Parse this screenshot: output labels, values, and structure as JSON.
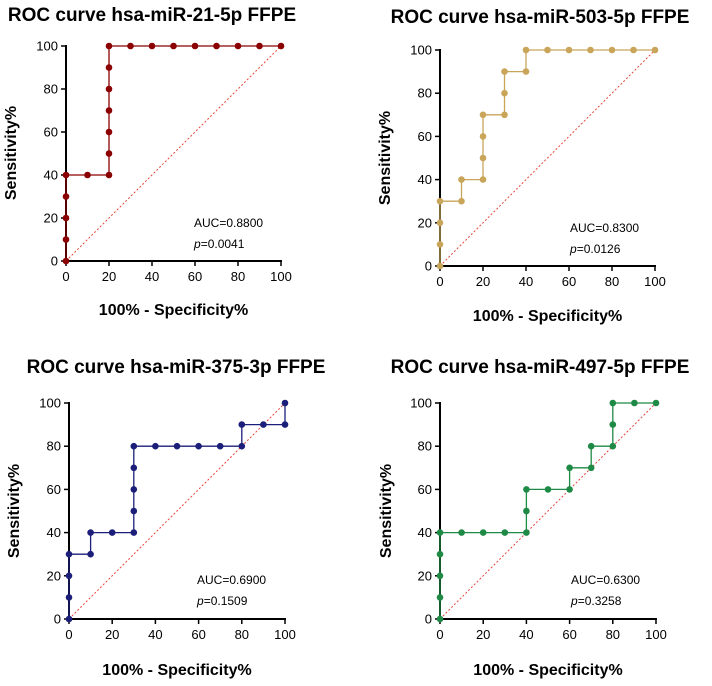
{
  "chart_data": [
    {
      "type": "line",
      "title": "ROC curve hsa-miR-21-5p FFPE",
      "xlabel": "100% - Specificity%",
      "ylabel": "Sensitivity%",
      "xlim": [
        0,
        100
      ],
      "ylim": [
        0,
        100
      ],
      "ticks": [
        "0",
        "20",
        "40",
        "60",
        "80",
        "100"
      ],
      "color": "#8b0000",
      "x": [
        0,
        0,
        0,
        0,
        0,
        10,
        20,
        20,
        20,
        20,
        20,
        20,
        20,
        30,
        40,
        50,
        60,
        70,
        80,
        90,
        100
      ],
      "y": [
        0,
        10,
        20,
        30,
        40,
        40,
        40,
        50,
        60,
        70,
        80,
        90,
        100,
        100,
        100,
        100,
        100,
        100,
        100,
        100,
        100
      ],
      "auc_label": "AUC=0.8800",
      "p_prefix": "p",
      "p_value": "=0.0041"
    },
    {
      "type": "line",
      "title": "ROC curve hsa-miR-503-5p FFPE",
      "xlabel": "100% - Specificity%",
      "ylabel": "Sensitivity%",
      "xlim": [
        0,
        100
      ],
      "ylim": [
        0,
        100
      ],
      "ticks": [
        "0",
        "20",
        "40",
        "60",
        "80",
        "100"
      ],
      "color": "#c9a55a",
      "x": [
        0,
        0,
        0,
        0,
        10,
        10,
        20,
        20,
        20,
        20,
        30,
        30,
        30,
        40,
        40,
        50,
        60,
        70,
        80,
        90,
        100
      ],
      "y": [
        0,
        10,
        20,
        30,
        30,
        40,
        40,
        50,
        60,
        70,
        70,
        80,
        90,
        90,
        100,
        100,
        100,
        100,
        100,
        100,
        100
      ],
      "auc_label": "AUC=0.8300",
      "p_prefix": "p",
      "p_value": "=0.0126"
    },
    {
      "type": "line",
      "title": "ROC curve hsa-miR-375-3p FFPE",
      "xlabel": "100% - Specificity%",
      "ylabel": "Sensitivity%",
      "xlim": [
        0,
        100
      ],
      "ylim": [
        0,
        100
      ],
      "ticks": [
        "0",
        "20",
        "40",
        "60",
        "80",
        "100"
      ],
      "color": "#1c1f7a",
      "x": [
        0,
        0,
        0,
        0,
        10,
        10,
        20,
        30,
        30,
        30,
        30,
        30,
        40,
        50,
        60,
        70,
        80,
        80,
        90,
        100,
        100
      ],
      "y": [
        0,
        10,
        20,
        30,
        30,
        40,
        40,
        40,
        50,
        60,
        70,
        80,
        80,
        80,
        80,
        80,
        80,
        90,
        90,
        90,
        100
      ],
      "auc_label": "AUC=0.6900",
      "p_prefix": "p",
      "p_value": "=0.1509"
    },
    {
      "type": "line",
      "title": "ROC curve hsa-miR-497-5p FFPE",
      "xlabel": "100% - Specificity%",
      "ylabel": "Sensitivity%",
      "xlim": [
        0,
        100
      ],
      "ylim": [
        0,
        100
      ],
      "ticks": [
        "0",
        "20",
        "40",
        "60",
        "80",
        "100"
      ],
      "color": "#1e8a45",
      "x": [
        0,
        0,
        0,
        0,
        0,
        10,
        20,
        30,
        40,
        40,
        40,
        50,
        60,
        60,
        70,
        70,
        80,
        80,
        80,
        90,
        100
      ],
      "y": [
        0,
        10,
        20,
        30,
        40,
        40,
        40,
        40,
        40,
        50,
        60,
        60,
        60,
        70,
        70,
        80,
        80,
        90,
        100,
        100,
        100
      ],
      "auc_label": "AUC=0.6300",
      "p_prefix": "p",
      "p_value": "=0.3258"
    }
  ]
}
